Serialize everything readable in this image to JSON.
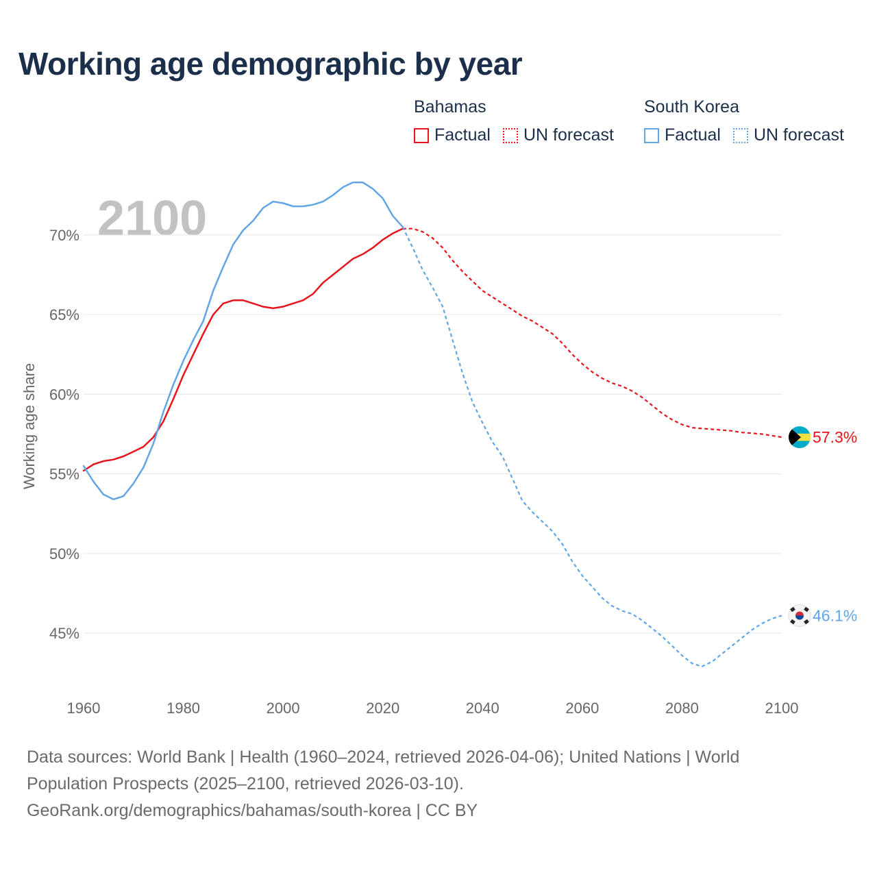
{
  "title": "Working age demographic by year",
  "year_label": "2100",
  "legend": {
    "groups": [
      {
        "name": "Bahamas",
        "color": "#e8131b",
        "factual_label": "Factual",
        "forecast_label": "UN forecast"
      },
      {
        "name": "South Korea",
        "color": "#62a5e6",
        "factual_label": "Factual",
        "forecast_label": "UN forecast"
      }
    ]
  },
  "footer": {
    "line1": "Data sources: World Bank | Health (1960–2024, retrieved 2026-04-06); United Nations | World",
    "line2": "Population Prospects (2025–2100, retrieved 2026-03-10).",
    "line3": "GeoRank.org/demographics/bahamas/south-korea | CC BY"
  },
  "chart_data": {
    "type": "line",
    "ylabel": "Working age share",
    "xlabel": "",
    "xlim": [
      1960,
      2100
    ],
    "ylim": [
      41,
      74
    ],
    "x_ticks": [
      1960,
      1980,
      2000,
      2020,
      2040,
      2060,
      2080,
      2100
    ],
    "y_ticks": [
      45,
      50,
      55,
      60,
      65,
      70
    ],
    "y_tick_labels": [
      "45%",
      "50%",
      "55%",
      "60%",
      "65%",
      "70%"
    ],
    "factual_end_year": 2024,
    "series": [
      {
        "name": "Bahamas",
        "color": "#e8131b",
        "end_label": "57.3%",
        "flag": "bahamas-flag",
        "points": [
          [
            1960,
            55.2
          ],
          [
            1962,
            55.6
          ],
          [
            1964,
            55.8
          ],
          [
            1966,
            55.9
          ],
          [
            1968,
            56.1
          ],
          [
            1970,
            56.4
          ],
          [
            1972,
            56.7
          ],
          [
            1974,
            57.3
          ],
          [
            1976,
            58.3
          ],
          [
            1978,
            59.7
          ],
          [
            1980,
            61.2
          ],
          [
            1982,
            62.5
          ],
          [
            1984,
            63.8
          ],
          [
            1986,
            65.0
          ],
          [
            1988,
            65.7
          ],
          [
            1990,
            65.9
          ],
          [
            1992,
            65.9
          ],
          [
            1994,
            65.7
          ],
          [
            1996,
            65.5
          ],
          [
            1998,
            65.4
          ],
          [
            2000,
            65.5
          ],
          [
            2002,
            65.7
          ],
          [
            2004,
            65.9
          ],
          [
            2006,
            66.3
          ],
          [
            2008,
            67.0
          ],
          [
            2010,
            67.5
          ],
          [
            2012,
            68.0
          ],
          [
            2014,
            68.5
          ],
          [
            2016,
            68.8
          ],
          [
            2018,
            69.2
          ],
          [
            2020,
            69.7
          ],
          [
            2022,
            70.1
          ],
          [
            2024,
            70.4
          ],
          [
            2026,
            70.4
          ],
          [
            2028,
            70.2
          ],
          [
            2030,
            69.8
          ],
          [
            2032,
            69.2
          ],
          [
            2034,
            68.4
          ],
          [
            2036,
            67.7
          ],
          [
            2038,
            67.1
          ],
          [
            2040,
            66.5
          ],
          [
            2042,
            66.1
          ],
          [
            2044,
            65.7
          ],
          [
            2046,
            65.3
          ],
          [
            2048,
            64.9
          ],
          [
            2050,
            64.6
          ],
          [
            2052,
            64.2
          ],
          [
            2054,
            63.8
          ],
          [
            2056,
            63.2
          ],
          [
            2058,
            62.5
          ],
          [
            2060,
            61.9
          ],
          [
            2062,
            61.4
          ],
          [
            2064,
            61.0
          ],
          [
            2066,
            60.7
          ],
          [
            2068,
            60.5
          ],
          [
            2070,
            60.2
          ],
          [
            2072,
            59.8
          ],
          [
            2074,
            59.3
          ],
          [
            2076,
            58.8
          ],
          [
            2078,
            58.4
          ],
          [
            2080,
            58.1
          ],
          [
            2082,
            57.9
          ],
          [
            2084,
            57.85
          ],
          [
            2086,
            57.8
          ],
          [
            2088,
            57.75
          ],
          [
            2090,
            57.7
          ],
          [
            2092,
            57.6
          ],
          [
            2094,
            57.55
          ],
          [
            2096,
            57.5
          ],
          [
            2098,
            57.4
          ],
          [
            2100,
            57.3
          ]
        ]
      },
      {
        "name": "South Korea",
        "color": "#62a5e6",
        "end_label": "46.1%",
        "flag": "south-korea-flag",
        "points": [
          [
            1960,
            55.5
          ],
          [
            1962,
            54.5
          ],
          [
            1964,
            53.7
          ],
          [
            1966,
            53.4
          ],
          [
            1968,
            53.6
          ],
          [
            1970,
            54.4
          ],
          [
            1972,
            55.4
          ],
          [
            1974,
            56.9
          ],
          [
            1976,
            58.9
          ],
          [
            1978,
            60.6
          ],
          [
            1980,
            62.1
          ],
          [
            1982,
            63.4
          ],
          [
            1984,
            64.6
          ],
          [
            1986,
            66.5
          ],
          [
            1988,
            68.0
          ],
          [
            1990,
            69.4
          ],
          [
            1992,
            70.3
          ],
          [
            1994,
            70.9
          ],
          [
            1996,
            71.7
          ],
          [
            1998,
            72.1
          ],
          [
            2000,
            72.0
          ],
          [
            2002,
            71.8
          ],
          [
            2004,
            71.8
          ],
          [
            2006,
            71.9
          ],
          [
            2008,
            72.1
          ],
          [
            2010,
            72.5
          ],
          [
            2012,
            73.0
          ],
          [
            2014,
            73.3
          ],
          [
            2016,
            73.3
          ],
          [
            2018,
            72.9
          ],
          [
            2020,
            72.3
          ],
          [
            2022,
            71.2
          ],
          [
            2024,
            70.5
          ],
          [
            2026,
            69.2
          ],
          [
            2028,
            67.8
          ],
          [
            2030,
            66.7
          ],
          [
            2032,
            65.5
          ],
          [
            2034,
            63.4
          ],
          [
            2036,
            61.3
          ],
          [
            2038,
            59.5
          ],
          [
            2040,
            58.2
          ],
          [
            2042,
            57.0
          ],
          [
            2044,
            56.1
          ],
          [
            2046,
            54.7
          ],
          [
            2048,
            53.3
          ],
          [
            2050,
            52.6
          ],
          [
            2052,
            52.0
          ],
          [
            2054,
            51.4
          ],
          [
            2056,
            50.6
          ],
          [
            2058,
            49.5
          ],
          [
            2060,
            48.6
          ],
          [
            2062,
            47.9
          ],
          [
            2064,
            47.2
          ],
          [
            2066,
            46.7
          ],
          [
            2068,
            46.4
          ],
          [
            2070,
            46.2
          ],
          [
            2072,
            45.8
          ],
          [
            2074,
            45.3
          ],
          [
            2076,
            44.8
          ],
          [
            2078,
            44.2
          ],
          [
            2080,
            43.6
          ],
          [
            2082,
            43.1
          ],
          [
            2084,
            42.9
          ],
          [
            2086,
            43.2
          ],
          [
            2088,
            43.7
          ],
          [
            2090,
            44.2
          ],
          [
            2092,
            44.7
          ],
          [
            2094,
            45.2
          ],
          [
            2096,
            45.6
          ],
          [
            2098,
            45.9
          ],
          [
            2100,
            46.1
          ]
        ]
      }
    ]
  }
}
